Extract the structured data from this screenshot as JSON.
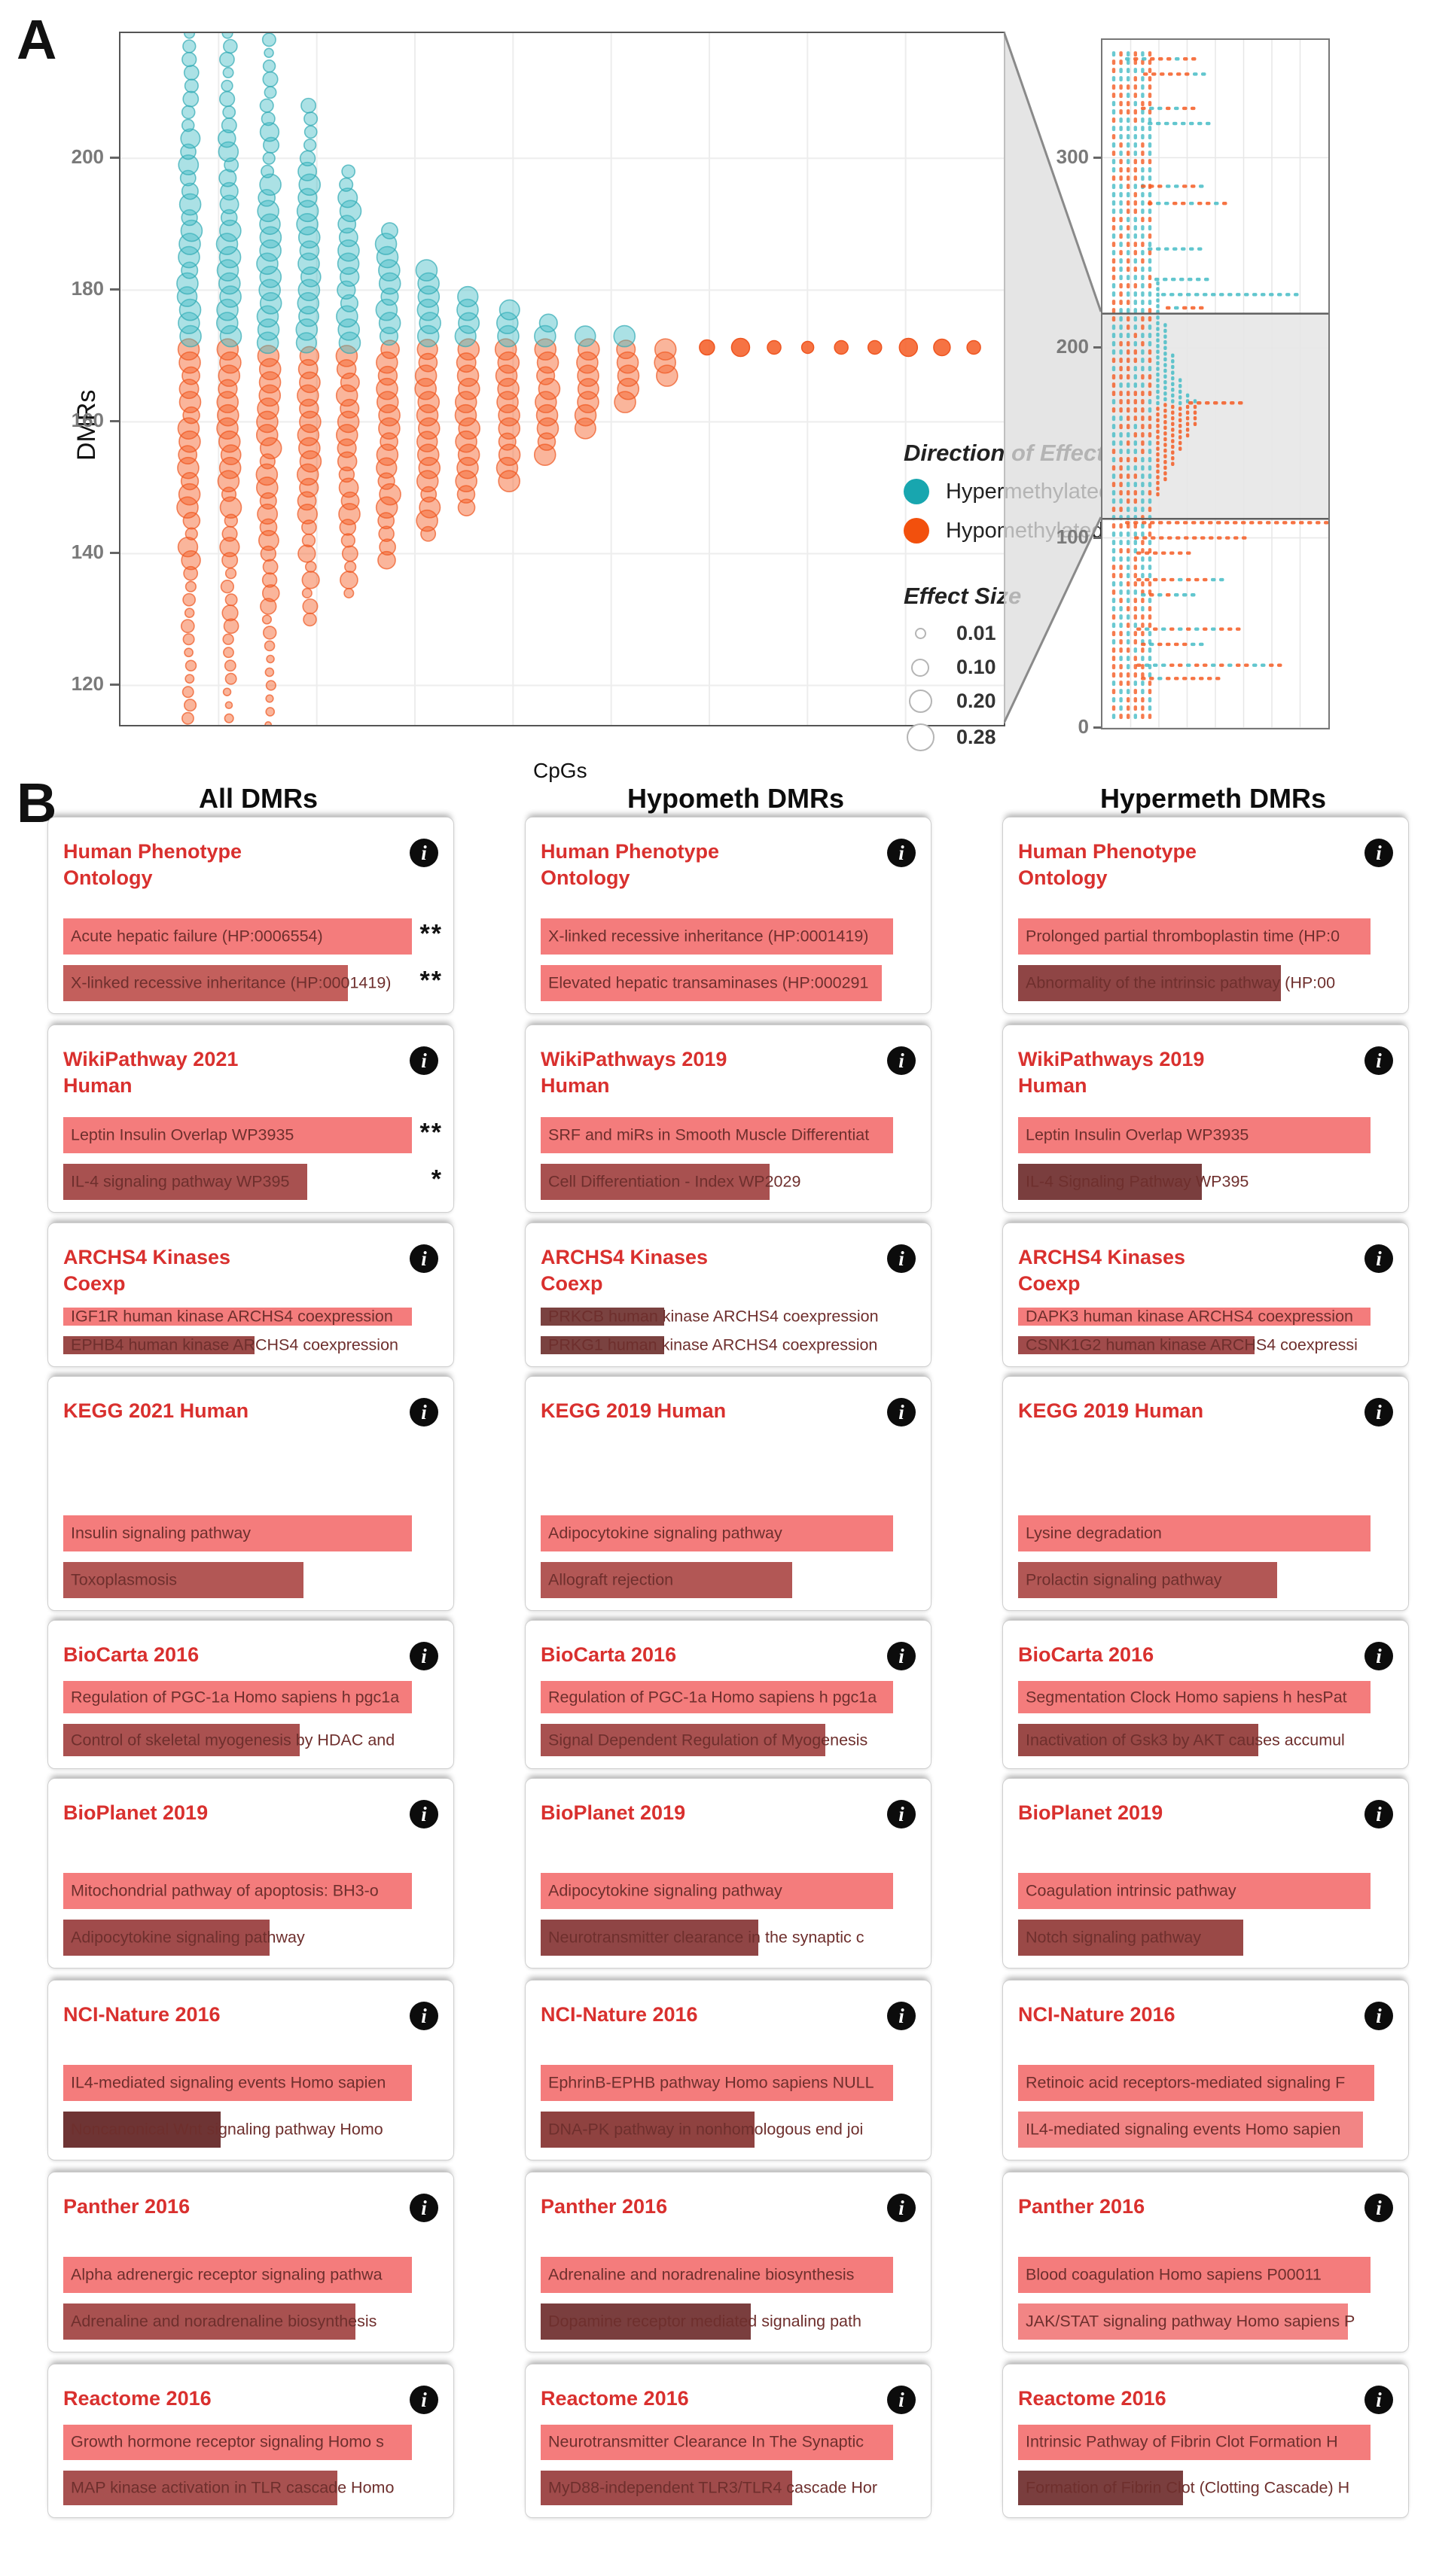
{
  "figure": {
    "panel_a_label": "A",
    "panel_b_label": "B"
  },
  "chart_data": [
    {
      "type": "scatter",
      "id": "main-bubble-plot",
      "title": "",
      "xlabel": "CpGs",
      "ylabel": "DMRs",
      "ylim": [
        114,
        219
      ],
      "yticks": [
        200,
        180,
        160,
        140,
        120
      ],
      "grid": true,
      "split_dmr": 171.5,
      "colors": {
        "hypermethylated": "#18A6AF",
        "hypomethylated": "#F2500D",
        "dot_teal": "#45BCC6",
        "dot_orange": "#F45A22"
      },
      "legend": {
        "position": "inside-right",
        "direction": {
          "title": "Direction of Effect",
          "items": [
            {
              "label": "Hypermethylated",
              "color": "#18A6AF"
            },
            {
              "label": "Hypomethylated",
              "color": "#F2500D"
            }
          ]
        },
        "size": {
          "title": "Effect Size",
          "items": [
            "0.01",
            "0.10",
            "0.20",
            "0.28"
          ]
        }
      },
      "columns": [
        {
          "x": 0.078,
          "top": 219,
          "bottom": 113
        },
        {
          "x": 0.123,
          "top": 219,
          "bottom": 111
        },
        {
          "x": 0.168,
          "top": 219,
          "bottom": 112
        },
        {
          "x": 0.213,
          "top": 208,
          "bottom": 130
        },
        {
          "x": 0.258,
          "top": 198,
          "bottom": 134
        },
        {
          "x": 0.303,
          "top": 190,
          "bottom": 139
        },
        {
          "x": 0.348,
          "top": 184.5,
          "bottom": 143
        },
        {
          "x": 0.393,
          "top": 180.5,
          "bottom": 147
        },
        {
          "x": 0.438,
          "top": 177.5,
          "bottom": 151
        },
        {
          "x": 0.483,
          "top": 175.5,
          "bottom": 155
        },
        {
          "x": 0.528,
          "top": 174,
          "bottom": 159
        },
        {
          "x": 0.573,
          "top": 173,
          "bottom": 163
        },
        {
          "x": 0.618,
          "top": 172,
          "bottom": 167
        }
      ],
      "tail_dots_y": 171.3,
      "tail_dots": [
        [
          0.664,
          10
        ],
        [
          0.702,
          12
        ],
        [
          0.74,
          9
        ],
        [
          0.778,
          8
        ],
        [
          0.816,
          9
        ],
        [
          0.854,
          9
        ],
        [
          0.892,
          12
        ],
        [
          0.93,
          11
        ],
        [
          0.966,
          9
        ]
      ]
    },
    {
      "type": "scatter",
      "id": "inset-overview-plot",
      "ylim": [
        0,
        362
      ],
      "yticks": [
        300,
        200,
        100,
        0
      ],
      "zoom_band_dmr": [
        110,
        218
      ],
      "band_fill": "#e9e9e9",
      "left_columns": [
        0.05,
        0.082,
        0.114,
        0.146,
        0.178,
        0.21
      ],
      "funnel_columns": [
        {
          "x": 0.245,
          "top": 236,
          "bottom": 124
        },
        {
          "x": 0.278,
          "top": 214,
          "bottom": 132
        },
        {
          "x": 0.311,
          "top": 197,
          "bottom": 140
        },
        {
          "x": 0.344,
          "top": 186,
          "bottom": 148
        },
        {
          "x": 0.377,
          "top": 178,
          "bottom": 155
        },
        {
          "x": 0.41,
          "top": 174,
          "bottom": 161
        }
      ],
      "mid_row": {
        "y": 171,
        "x0": 0.38,
        "x1": 0.63,
        "c": "orange"
      },
      "rows": [
        {
          "y": 352,
          "x0": 0.1,
          "x1": 0.4,
          "c": "mixed"
        },
        {
          "y": 344,
          "x0": 0.18,
          "x1": 0.45,
          "c": "mixed"
        },
        {
          "y": 326,
          "x0": 0.17,
          "x1": 0.4,
          "c": "mixed"
        },
        {
          "y": 318,
          "x0": 0.2,
          "x1": 0.47,
          "c": "teal"
        },
        {
          "y": 285,
          "x0": 0.17,
          "x1": 0.43,
          "c": "mixed"
        },
        {
          "y": 276,
          "x0": 0.2,
          "x1": 0.53,
          "c": "mixed"
        },
        {
          "y": 252,
          "x0": 0.2,
          "x1": 0.45,
          "c": "teal"
        },
        {
          "y": 236,
          "x0": 0.23,
          "x1": 0.48,
          "c": "teal"
        },
        {
          "y": 228,
          "x0": 0.26,
          "x1": 0.86,
          "c": "teal"
        },
        {
          "y": 221,
          "x0": 0.28,
          "x1": 0.45,
          "c": "mixed"
        },
        {
          "y": 108,
          "x0": 0.1,
          "x1": 0.99,
          "c": "orange"
        },
        {
          "y": 100,
          "x0": 0.14,
          "x1": 0.62,
          "c": "orange"
        },
        {
          "y": 92,
          "x0": 0.15,
          "x1": 0.4,
          "c": "orange"
        },
        {
          "y": 78,
          "x0": 0.15,
          "x1": 0.52,
          "c": "mixed"
        },
        {
          "y": 70,
          "x0": 0.17,
          "x1": 0.42,
          "c": "mixed"
        },
        {
          "y": 52,
          "x0": 0.15,
          "x1": 0.6,
          "c": "mixed"
        },
        {
          "y": 44,
          "x0": 0.17,
          "x1": 0.46,
          "c": "mixed"
        },
        {
          "y": 33,
          "x0": 0.15,
          "x1": 0.78,
          "c": "mixed"
        },
        {
          "y": 26,
          "x0": 0.17,
          "x1": 0.52,
          "c": "mixed"
        }
      ]
    }
  ],
  "panel_b": {
    "info_icon_glyph": "i",
    "bar_colors": {
      "light": "#F47C7C",
      "dark_range": [
        "#C35F5C",
        "#6E3434"
      ]
    },
    "columns": [
      {
        "header": "All DMRs",
        "cards": [
          {
            "title": "Human Phenotype Ontology",
            "bars": [
              {
                "label": "Acute hepatic failure (HP:0006554)",
                "width_pct": 93,
                "color": "#F47C7C",
                "stars": "**"
              },
              {
                "label": "X-linked recessive inheritance (HP:0001419)",
                "width_pct": 76,
                "color": "#C35F5C",
                "stars": "**"
              }
            ]
          },
          {
            "title": "WikiPathway 2021 Human",
            "bars": [
              {
                "label": "Leptin Insulin Overlap WP3935",
                "width_pct": 93,
                "color": "#F47C7C",
                "stars": "**"
              },
              {
                "label": "IL-4 signaling pathway WP395",
                "width_pct": 65,
                "color": "#A85150",
                "stars": "*"
              }
            ]
          },
          {
            "title": "ARCHS4 Kinases Coexp",
            "bars": [
              {
                "label": "IGF1R human kinase ARCHS4 coexpression",
                "width_pct": 93,
                "color": "#F47C7C"
              },
              {
                "label": "EPHB4 human kinase ARCHS4 coexpression",
                "width_pct": 51,
                "color": "#9A4947"
              }
            ]
          },
          {
            "title": "KEGG 2021 Human",
            "bars": [
              {
                "label": "Insulin signaling pathway",
                "width_pct": 93,
                "color": "#F47C7C"
              },
              {
                "label": "Toxoplasmosis",
                "width_pct": 64,
                "color": "#B25755"
              }
            ]
          },
          {
            "title": "BioCarta 2016",
            "bars": [
              {
                "label": "Regulation of PGC-1a Homo sapiens h pgc1a",
                "width_pct": 93,
                "color": "#F47C7C"
              },
              {
                "label": "Control of skeletal myogenesis by HDAC and",
                "width_pct": 63,
                "color": "#AA5150"
              }
            ]
          },
          {
            "title": "BioPlanet 2019",
            "bars": [
              {
                "label": "Mitochondrial pathway of apoptosis: BH3-o",
                "width_pct": 93,
                "color": "#F47C7C"
              },
              {
                "label": "Adipocytokine signaling pathway",
                "width_pct": 55,
                "color": "#A04B4B"
              }
            ]
          },
          {
            "title": "NCI-Nature 2016",
            "bars": [
              {
                "label": "IL4-mediated signaling events Homo sapien",
                "width_pct": 93,
                "color": "#F47C7C"
              },
              {
                "label": "Noncanonical Wnt signaling pathway Homo",
                "width_pct": 42,
                "color": "#6E3434"
              }
            ]
          },
          {
            "title": "Panther 2016",
            "bars": [
              {
                "label": "Alpha adrenergic receptor signaling pathwa",
                "width_pct": 93,
                "color": "#F47C7C"
              },
              {
                "label": "Adrenaline and noradrenaline biosynthesis",
                "width_pct": 78,
                "color": "#A85150"
              }
            ]
          },
          {
            "title": "Reactome 2016",
            "bars": [
              {
                "label": "Growth hormone receptor signaling Homo s",
                "width_pct": 93,
                "color": "#F47C7C"
              },
              {
                "label": "MAP kinase activation in TLR cascade Homo",
                "width_pct": 73,
                "color": "#A85150"
              }
            ]
          }
        ]
      },
      {
        "header": "Hypometh DMRs",
        "cards": [
          {
            "title": "Human Phenotype Ontology",
            "bars": [
              {
                "label": "X-linked recessive inheritance (HP:0001419)",
                "width_pct": 94,
                "color": "#F47C7C"
              },
              {
                "label": "Elevated hepatic transaminases (HP:000291",
                "width_pct": 91,
                "color": "#F47C7C"
              }
            ]
          },
          {
            "title": "WikiPathways 2019 Human",
            "bars": [
              {
                "label": "SRF and miRs in Smooth Muscle Differentiat",
                "width_pct": 94,
                "color": "#F47C7C"
              },
              {
                "label": "Cell Differentiation - Index WP2029",
                "width_pct": 61,
                "color": "#A85150"
              }
            ]
          },
          {
            "title": "ARCHS4 Kinases Coexp",
            "bars": [
              {
                "label": "PRKCB human kinase ARCHS4 coexpression",
                "width_pct": 33,
                "color": "#7A4240"
              },
              {
                "label": "PRKG1 human kinase ARCHS4 coexpression",
                "width_pct": 33,
                "color": "#7A4240"
              }
            ]
          },
          {
            "title": "KEGG 2019 Human",
            "bars": [
              {
                "label": "Adipocytokine signaling pathway",
                "width_pct": 94,
                "color": "#F47C7C"
              },
              {
                "label": "Allograft rejection",
                "width_pct": 67,
                "color": "#B25755"
              }
            ]
          },
          {
            "title": "BioCarta 2016",
            "bars": [
              {
                "label": "Regulation of PGC-1a Homo sapiens h pgc1a",
                "width_pct": 94,
                "color": "#F47C7C"
              },
              {
                "label": "Signal Dependent Regulation of Myogenesis",
                "width_pct": 76,
                "color": "#A85150"
              }
            ]
          },
          {
            "title": "BioPlanet 2019",
            "bars": [
              {
                "label": "Adipocytokine signaling pathway",
                "width_pct": 94,
                "color": "#F47C7C"
              },
              {
                "label": "Neurotransmitter clearance in the synaptic c",
                "width_pct": 58,
                "color": "#8F4545"
              }
            ]
          },
          {
            "title": "NCI-Nature 2016",
            "bars": [
              {
                "label": "EphrinB-EPHB pathway Homo sapiens NULL",
                "width_pct": 94,
                "color": "#F47C7C"
              },
              {
                "label": "DNA-PK pathway in nonhomologous end joi",
                "width_pct": 57,
                "color": "#8F4240"
              }
            ]
          },
          {
            "title": "Panther 2016",
            "bars": [
              {
                "label": "Adrenaline and noradrenaline biosynthesis",
                "width_pct": 94,
                "color": "#F47C7C"
              },
              {
                "label": "Dopamine receptor mediated signaling path",
                "width_pct": 56,
                "color": "#7A3E3E"
              }
            ]
          },
          {
            "title": "Reactome 2016",
            "bars": [
              {
                "label": "Neurotransmitter Clearance In The Synaptic",
                "width_pct": 94,
                "color": "#F47C7C"
              },
              {
                "label": "MyD88-independent TLR3/TLR4 cascade Hor",
                "width_pct": 67,
                "color": "#A04B4B"
              }
            ]
          }
        ]
      },
      {
        "header": "Hypermeth DMRs",
        "cards": [
          {
            "title": "Human Phenotype Ontology",
            "bars": [
              {
                "label": "Prolonged partial thromboplastin time (HP:0",
                "width_pct": 94,
                "color": "#F47C7C"
              },
              {
                "label": "Abnormality of the intrinsic pathway (HP:00",
                "width_pct": 70,
                "color": "#8F4545"
              }
            ]
          },
          {
            "title": "WikiPathways 2019 Human",
            "bars": [
              {
                "label": "Leptin Insulin Overlap WP3935",
                "width_pct": 94,
                "color": "#F47C7C"
              },
              {
                "label": "IL-4 Signaling Pathway WP395",
                "width_pct": 49,
                "color": "#7A3E3E"
              }
            ]
          },
          {
            "title": "ARCHS4 Kinases Coexp",
            "bars": [
              {
                "label": "DAPK3 human kinase ARCHS4 coexpression",
                "width_pct": 94,
                "color": "#F47C7C"
              },
              {
                "label": "CSNK1G2 human kinase ARCHS4 coexpressi",
                "width_pct": 63,
                "color": "#A04B4B"
              }
            ]
          },
          {
            "title": "KEGG 2019 Human",
            "bars": [
              {
                "label": "Lysine degradation",
                "width_pct": 94,
                "color": "#F47C7C"
              },
              {
                "label": "Prolactin signaling pathway",
                "width_pct": 69,
                "color": "#B25755"
              }
            ]
          },
          {
            "title": "BioCarta 2016",
            "bars": [
              {
                "label": "Segmentation Clock Homo sapiens h hesPat",
                "width_pct": 94,
                "color": "#F47C7C"
              },
              {
                "label": "Inactivation of Gsk3 by AKT causes accumul",
                "width_pct": 64,
                "color": "#9A4947"
              }
            ]
          },
          {
            "title": "BioPlanet 2019",
            "bars": [
              {
                "label": "Coagulation intrinsic pathway",
                "width_pct": 94,
                "color": "#F47C7C"
              },
              {
                "label": "Notch signaling pathway",
                "width_pct": 60,
                "color": "#9A4947"
              }
            ]
          },
          {
            "title": "NCI-Nature 2016",
            "bars": [
              {
                "label": "Retinoic acid receptors-mediated signaling F",
                "width_pct": 95,
                "color": "#F47C7C"
              },
              {
                "label": "IL4-mediated signaling events Homo sapien",
                "width_pct": 92,
                "color": "#F28585"
              }
            ]
          },
          {
            "title": "Panther 2016",
            "bars": [
              {
                "label": "Blood coagulation Homo sapiens P00011",
                "width_pct": 94,
                "color": "#F47C7C"
              },
              {
                "label": "JAK/STAT signaling pathway Homo sapiens P",
                "width_pct": 88,
                "color": "#F28585"
              }
            ]
          },
          {
            "title": "Reactome 2016",
            "bars": [
              {
                "label": "Intrinsic Pathway of Fibrin Clot Formation H",
                "width_pct": 94,
                "color": "#F47C7C"
              },
              {
                "label": "Formation of Fibrin Clot (Clotting Cascade) H",
                "width_pct": 44,
                "color": "#7A3E3E"
              }
            ]
          }
        ]
      }
    ]
  }
}
